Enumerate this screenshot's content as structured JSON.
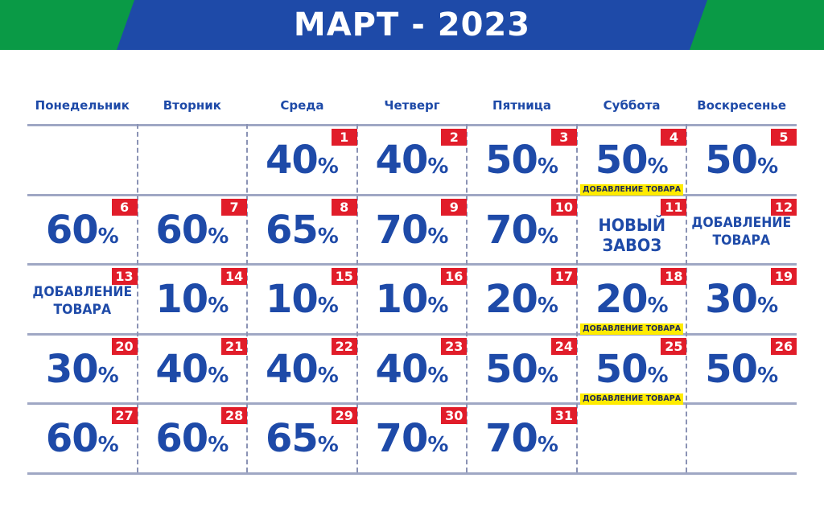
{
  "title": "МАРТ - 2023",
  "weekdays": [
    "Понедельник",
    "Вторник",
    "Среда",
    "Четверг",
    "Пятница",
    "Суббота",
    "Воскресенье"
  ],
  "percent_sign": "%",
  "colors": {
    "blue": "#1e4aa8",
    "green": "#0a9a46",
    "red": "#e11d2a",
    "yellow": "#ffeb00"
  },
  "days": [
    {
      "day": "1",
      "col": 2,
      "row": 0,
      "pct": "40"
    },
    {
      "day": "2",
      "col": 3,
      "row": 0,
      "pct": "40"
    },
    {
      "day": "3",
      "col": 4,
      "row": 0,
      "pct": "50"
    },
    {
      "day": "4",
      "col": 5,
      "row": 0,
      "pct": "50",
      "tag": "ДОБАВЛЕНИЕ ТОВАРА"
    },
    {
      "day": "5",
      "col": 6,
      "row": 0,
      "pct": "50"
    },
    {
      "day": "6",
      "col": 0,
      "row": 1,
      "pct": "60"
    },
    {
      "day": "7",
      "col": 1,
      "row": 1,
      "pct": "60"
    },
    {
      "day": "8",
      "col": 2,
      "row": 1,
      "pct": "65"
    },
    {
      "day": "9",
      "col": 3,
      "row": 1,
      "pct": "70"
    },
    {
      "day": "10",
      "col": 4,
      "row": 1,
      "pct": "70"
    },
    {
      "day": "11",
      "col": 5,
      "row": 1,
      "note": [
        "НОВЫЙ",
        "ЗАВОЗ"
      ],
      "big": true
    },
    {
      "day": "12",
      "col": 6,
      "row": 1,
      "note": [
        "ДОБАВЛЕНИЕ",
        "ТОВАРА"
      ]
    },
    {
      "day": "13",
      "col": 0,
      "row": 2,
      "note": [
        "ДОБАВЛЕНИЕ",
        "ТОВАРА"
      ]
    },
    {
      "day": "14",
      "col": 1,
      "row": 2,
      "pct": "10"
    },
    {
      "day": "15",
      "col": 2,
      "row": 2,
      "pct": "10"
    },
    {
      "day": "16",
      "col": 3,
      "row": 2,
      "pct": "10"
    },
    {
      "day": "17",
      "col": 4,
      "row": 2,
      "pct": "20"
    },
    {
      "day": "18",
      "col": 5,
      "row": 2,
      "pct": "20",
      "tag": "ДОБАВЛЕНИЕ ТОВАРА"
    },
    {
      "day": "19",
      "col": 6,
      "row": 2,
      "pct": "30"
    },
    {
      "day": "20",
      "col": 0,
      "row": 3,
      "pct": "30"
    },
    {
      "day": "21",
      "col": 1,
      "row": 3,
      "pct": "40"
    },
    {
      "day": "22",
      "col": 2,
      "row": 3,
      "pct": "40"
    },
    {
      "day": "23",
      "col": 3,
      "row": 3,
      "pct": "40"
    },
    {
      "day": "24",
      "col": 4,
      "row": 3,
      "pct": "50"
    },
    {
      "day": "25",
      "col": 5,
      "row": 3,
      "pct": "50",
      "tag": "ДОБАВЛЕНИЕ ТОВАРА"
    },
    {
      "day": "26",
      "col": 6,
      "row": 3,
      "pct": "50"
    },
    {
      "day": "27",
      "col": 0,
      "row": 4,
      "pct": "60"
    },
    {
      "day": "28",
      "col": 1,
      "row": 4,
      "pct": "60"
    },
    {
      "day": "29",
      "col": 2,
      "row": 4,
      "pct": "65"
    },
    {
      "day": "30",
      "col": 3,
      "row": 4,
      "pct": "70"
    },
    {
      "day": "31",
      "col": 4,
      "row": 4,
      "pct": "70"
    }
  ]
}
